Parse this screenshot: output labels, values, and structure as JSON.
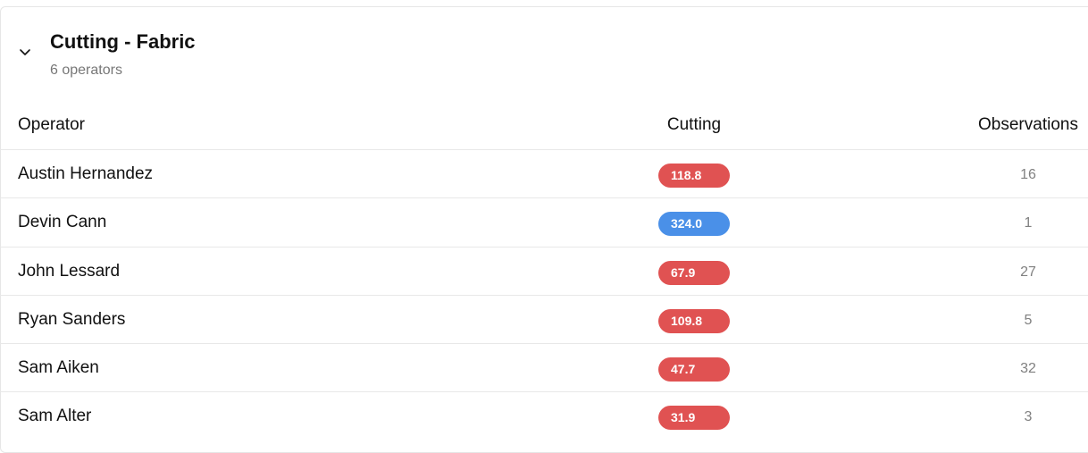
{
  "section": {
    "title": "Cutting - Fabric",
    "subtitle": "6 operators",
    "expanded": true,
    "toggle_icon": "chevron-down-icon"
  },
  "table": {
    "columns": {
      "operator": "Operator",
      "cutting": "Cutting",
      "observations": "Observations"
    },
    "rows": [
      {
        "operator": "Austin Hernandez",
        "cutting": "118.8",
        "cutting_status": "red",
        "observations": "16"
      },
      {
        "operator": "Devin Cann",
        "cutting": "324.0",
        "cutting_status": "blue",
        "observations": "1"
      },
      {
        "operator": "John Lessard",
        "cutting": "67.9",
        "cutting_status": "red",
        "observations": "27"
      },
      {
        "operator": "Ryan Sanders",
        "cutting": "109.8",
        "cutting_status": "red",
        "observations": "5"
      },
      {
        "operator": "Sam Aiken",
        "cutting": "47.7",
        "cutting_status": "red",
        "observations": "32"
      },
      {
        "operator": "Sam Alter",
        "cutting": "31.9",
        "cutting_status": "red",
        "observations": "3"
      }
    ]
  },
  "colors": {
    "red": "#e05252",
    "blue": "#4a90e8",
    "divider": "#e8e8e8",
    "muted_text": "#777777"
  }
}
